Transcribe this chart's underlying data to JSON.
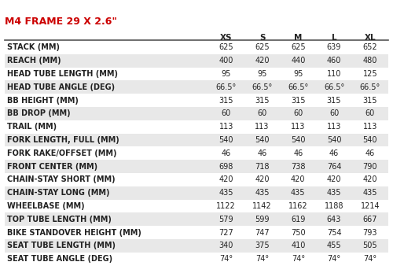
{
  "title": "M4 FRAME 29 X 2.6\"",
  "title_color": "#cc0000",
  "columns": [
    "XS",
    "S",
    "M",
    "L",
    "XL"
  ],
  "rows": [
    {
      "label": "STACK (MM)",
      "values": [
        "625",
        "625",
        "625",
        "639",
        "652"
      ]
    },
    {
      "label": "REACH (MM)",
      "values": [
        "400",
        "420",
        "440",
        "460",
        "480"
      ]
    },
    {
      "label": "HEAD TUBE LENGTH (MM)",
      "values": [
        "95",
        "95",
        "95",
        "110",
        "125"
      ]
    },
    {
      "label": "HEAD TUBE ANGLE (DEG)",
      "values": [
        "66.5°",
        "66.5°",
        "66.5°",
        "66.5°",
        "66.5°"
      ]
    },
    {
      "label": "BB HEIGHT (MM)",
      "values": [
        "315",
        "315",
        "315",
        "315",
        "315"
      ]
    },
    {
      "label": "BB DROP (MM)",
      "values": [
        "60",
        "60",
        "60",
        "60",
        "60"
      ]
    },
    {
      "label": "TRAIL (MM)",
      "values": [
        "113",
        "113",
        "113",
        "113",
        "113"
      ]
    },
    {
      "label": "FORK LENGTH, FULL (MM)",
      "values": [
        "540",
        "540",
        "540",
        "540",
        "540"
      ]
    },
    {
      "label": "FORK RAKE/OFFSET (MM)",
      "values": [
        "46",
        "46",
        "46",
        "46",
        "46"
      ]
    },
    {
      "label": "FRONT CENTER (MM)",
      "values": [
        "698",
        "718",
        "738",
        "764",
        "790"
      ]
    },
    {
      "label": "CHAIN-STAY SHORT (MM)",
      "values": [
        "420",
        "420",
        "420",
        "420",
        "420"
      ]
    },
    {
      "label": "CHAIN-STAY LONG (MM)",
      "values": [
        "435",
        "435",
        "435",
        "435",
        "435"
      ]
    },
    {
      "label": "WHEELBASE (MM)",
      "values": [
        "1122",
        "1142",
        "1162",
        "1188",
        "1214"
      ]
    },
    {
      "label": "TOP TUBE LENGTH (MM)",
      "values": [
        "579",
        "599",
        "619",
        "643",
        "667"
      ]
    },
    {
      "label": "BIKE STANDOVER HEIGHT (MM)",
      "values": [
        "727",
        "747",
        "750",
        "754",
        "793"
      ]
    },
    {
      "label": "SEAT TUBE LENGTH (MM)",
      "values": [
        "340",
        "375",
        "410",
        "455",
        "505"
      ]
    },
    {
      "label": "SEAT TUBE ANGLE (DEG)",
      "values": [
        "74°",
        "74°",
        "74°",
        "74°",
        "74°"
      ]
    }
  ],
  "bg_color": "#ffffff",
  "row_alt_color": "#e8e8e8",
  "row_plain_color": "#ffffff",
  "header_line_color": "#555555",
  "text_color": "#222222",
  "font_size": 7.0,
  "header_font_size": 7.5,
  "title_font_size": 9.0
}
